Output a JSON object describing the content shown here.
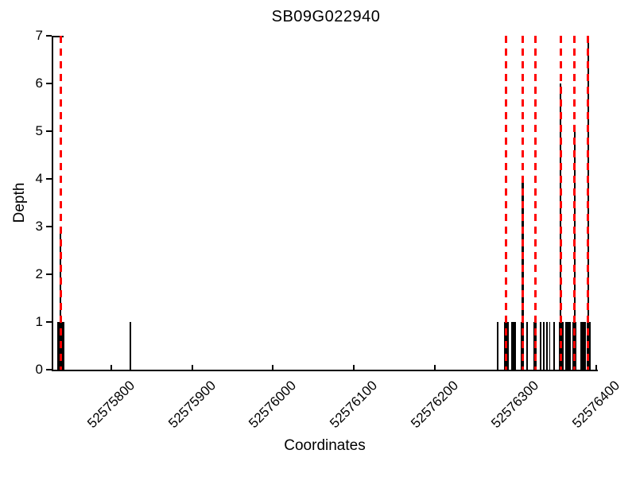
{
  "chart_data": {
    "type": "bar",
    "title": "SB09G022940",
    "xlabel": "Coordinates",
    "ylabel": "Depth",
    "xlim": [
      52575728,
      52576400
    ],
    "ylim": [
      0,
      7
    ],
    "grid": false,
    "legend": null,
    "x_ticks": [
      52575800,
      52575900,
      52576000,
      52576100,
      52576200,
      52576300,
      52576400
    ],
    "x_tick_labels": [
      "52575800",
      "52575900",
      "52576000",
      "52576100",
      "52576200",
      "52576300",
      "52576400"
    ],
    "y_ticks": [
      0,
      1,
      2,
      3,
      4,
      5,
      6,
      7
    ],
    "y_tick_labels": [
      "0",
      "1",
      "2",
      "3",
      "4",
      "5",
      "6",
      "7"
    ],
    "bar_color": "#000000",
    "marker_color": "#ff0000",
    "axis_color": "#000000",
    "background_color": "#ffffff",
    "depth_bars": [
      {
        "start": 52575733,
        "end": 52575742,
        "depth": 1
      },
      {
        "start": 52575736,
        "end": 52575738,
        "depth": 3
      },
      {
        "start": 52575822,
        "end": 52575824,
        "depth": 1
      },
      {
        "start": 52576277,
        "end": 52576279,
        "depth": 1
      },
      {
        "start": 52576286,
        "end": 52576291.5,
        "depth": 1
      },
      {
        "start": 52576295,
        "end": 52576300.5,
        "depth": 1
      },
      {
        "start": 52576306.5,
        "end": 52576310,
        "depth": 1
      },
      {
        "start": 52576308,
        "end": 52576310,
        "depth": 4
      },
      {
        "start": 52576313,
        "end": 52576315.5,
        "depth": 1
      },
      {
        "start": 52576322,
        "end": 52576326.5,
        "depth": 1
      },
      {
        "start": 52576330.5,
        "end": 52576332,
        "depth": 1
      },
      {
        "start": 52576334.5,
        "end": 52576336,
        "depth": 1
      },
      {
        "start": 52576338,
        "end": 52576340,
        "depth": 1
      },
      {
        "start": 52576341.5,
        "end": 52576343,
        "depth": 1
      },
      {
        "start": 52576346.5,
        "end": 52576348.5,
        "depth": 1
      },
      {
        "start": 52576353.5,
        "end": 52576359.5,
        "depth": 1
      },
      {
        "start": 52576355,
        "end": 52576357,
        "depth": 6
      },
      {
        "start": 52576362,
        "end": 52576368.5,
        "depth": 1
      },
      {
        "start": 52576370.5,
        "end": 52576375,
        "depth": 1
      },
      {
        "start": 52576372,
        "end": 52576374,
        "depth": 5
      },
      {
        "start": 52576380.5,
        "end": 52576387.5,
        "depth": 1
      },
      {
        "start": 52576388,
        "end": 52576393,
        "depth": 1
      },
      {
        "start": 52576389,
        "end": 52576391,
        "depth": 7
      }
    ],
    "marker_lines": [
      52575737,
      52576288,
      52576309,
      52576325,
      52576356,
      52576373,
      52576390
    ]
  }
}
